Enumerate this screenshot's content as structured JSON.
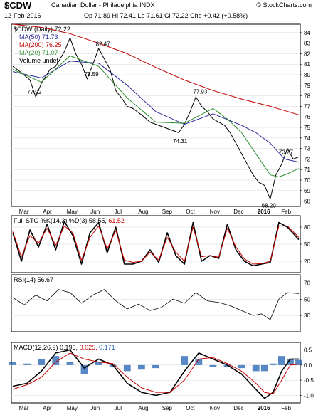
{
  "header": {
    "symbol": "$CDW",
    "name": "Canadian Dollar - Philadelphia",
    "exchange": "INDX",
    "brand": "© StockCharts.com",
    "date": "12-Feb-2016",
    "quote": "Op 71.89  Hi 72.41  Lo 71.61  Cl 72.22  Chg +0.42 (+0.58%)"
  },
  "colors": {
    "price": "#000000",
    "ma50": "#2a2a9a",
    "ma200": "#c00000",
    "ma20": "#2e8b2e",
    "sto_k": "#000000",
    "sto_d": "#cc0000",
    "macd_line": "#000000",
    "signal_line": "#cc0000",
    "histogram": "#1f5fb0",
    "rsi_fill_under": "#8b4a4a"
  },
  "panels": {
    "price": {
      "legend": [
        {
          "text": "$CDW (Daily) 72.22",
          "color": "#000000"
        },
        {
          "text": "MA(50) 71.73",
          "color": "#2a2a9a"
        },
        {
          "text": "MA(200) 76.25",
          "color": "#c00000"
        },
        {
          "text": "MA(20) 71.07",
          "color": "#2e8b2e"
        },
        {
          "text": "Volume undef",
          "color": "#000000"
        }
      ]
    },
    "sto": {
      "label": "Full STO %K(14,3) %D(3) 58.55, 61.52",
      "label_k": "Full STO %K(14,3) %D(3) 58.55,",
      "label_d": "61.52"
    },
    "rsi": {
      "label": "RSI(14) 56.67"
    },
    "macd": {
      "label_a": "MACD(12,26,9) 0.196,",
      "label_b": "0.025,",
      "label_c": "0.171"
    }
  },
  "chart_data": [
    {
      "type": "line",
      "title": "$CDW (Daily) 72.22",
      "ylim": [
        67.5,
        84.8
      ],
      "ticks_y": [
        68,
        69,
        70,
        71,
        72,
        73,
        74,
        75,
        76,
        77,
        78,
        79,
        80,
        81,
        82,
        83,
        84
      ],
      "x_months": [
        "Mar",
        "Apr",
        "May",
        "Jun",
        "Jul",
        "Aug",
        "Sep",
        "Oct",
        "Nov",
        "Dec",
        "2016",
        "Feb"
      ],
      "annotations": [
        {
          "text": "77.92",
          "x": 0.08,
          "y": 77.92
        },
        {
          "text": "82.47",
          "x": 0.32,
          "y": 82.47
        },
        {
          "text": "79.59",
          "x": 0.28,
          "y": 79.59
        },
        {
          "text": "77.93",
          "x": 0.66,
          "y": 77.93
        },
        {
          "text": "74.31",
          "x": 0.59,
          "y": 74.31
        },
        {
          "text": "73.27",
          "x": 0.96,
          "y": 73.27
        },
        {
          "text": "68.20",
          "x": 0.9,
          "y": 68.2
        }
      ],
      "series": [
        {
          "name": "$CDW",
          "x": [
            0,
            0.03,
            0.06,
            0.08,
            0.1,
            0.13,
            0.15,
            0.18,
            0.2,
            0.22,
            0.24,
            0.26,
            0.28,
            0.3,
            0.32,
            0.34,
            0.36,
            0.38,
            0.4,
            0.42,
            0.45,
            0.48,
            0.5,
            0.53,
            0.55,
            0.58,
            0.6,
            0.62,
            0.64,
            0.66,
            0.68,
            0.7,
            0.72,
            0.74,
            0.76,
            0.78,
            0.8,
            0.82,
            0.84,
            0.86,
            0.88,
            0.9,
            0.92,
            0.94,
            0.96,
            0.98,
            1.0
          ],
          "values": [
            80.8,
            80.2,
            79.5,
            77.9,
            79.2,
            80.5,
            80.8,
            82.2,
            83.5,
            82.0,
            81.0,
            79.6,
            81.0,
            82.5,
            81.5,
            80.5,
            78.5,
            77.8,
            77.0,
            76.8,
            76.2,
            75.5,
            75.3,
            75.0,
            74.8,
            74.5,
            75.3,
            76.5,
            77.9,
            77.0,
            76.5,
            75.8,
            75.5,
            75.2,
            74.5,
            73.5,
            72.5,
            71.5,
            70.5,
            69.8,
            69.5,
            68.2,
            70.5,
            71.5,
            73.0,
            72.0,
            72.2
          ]
        },
        {
          "name": "MA(50)",
          "x": [
            0,
            0.1,
            0.2,
            0.3,
            0.4,
            0.5,
            0.6,
            0.7,
            0.8,
            0.85,
            0.9,
            0.95,
            1.0
          ],
          "values": [
            80.3,
            79.7,
            81.3,
            81.1,
            79.0,
            76.5,
            75.3,
            76.3,
            75.2,
            74.5,
            73.5,
            72.0,
            71.7
          ]
        },
        {
          "name": "MA(200)",
          "x": [
            0,
            0.1,
            0.2,
            0.3,
            0.4,
            0.5,
            0.6,
            0.7,
            0.8,
            0.9,
            1.0
          ],
          "values": [
            84.8,
            84.5,
            83.9,
            83.0,
            82.0,
            80.7,
            79.5,
            78.5,
            77.7,
            77.0,
            76.2
          ]
        },
        {
          "name": "MA(20)",
          "x": [
            0,
            0.1,
            0.2,
            0.3,
            0.4,
            0.5,
            0.6,
            0.7,
            0.75,
            0.8,
            0.85,
            0.9,
            0.93,
            0.96,
            1.0
          ],
          "values": [
            80.5,
            79.3,
            81.8,
            80.8,
            77.8,
            75.5,
            75.4,
            76.8,
            75.8,
            74.5,
            72.5,
            70.5,
            70.3,
            70.6,
            71.1
          ]
        }
      ]
    },
    {
      "type": "line",
      "title": "Full STO %K(14,3) %D(3) 58.55, 61.52",
      "ylim": [
        0,
        100
      ],
      "ticks_y": [
        20,
        50,
        80
      ],
      "series": [
        {
          "name": "%K",
          "x": [
            0,
            0.03,
            0.06,
            0.09,
            0.12,
            0.15,
            0.18,
            0.21,
            0.24,
            0.27,
            0.3,
            0.33,
            0.36,
            0.39,
            0.42,
            0.45,
            0.48,
            0.51,
            0.54,
            0.57,
            0.6,
            0.63,
            0.66,
            0.69,
            0.72,
            0.75,
            0.78,
            0.81,
            0.84,
            0.87,
            0.9,
            0.93,
            0.96,
            1.0
          ],
          "values": [
            70,
            20,
            75,
            45,
            85,
            40,
            90,
            65,
            15,
            70,
            88,
            35,
            80,
            15,
            15,
            20,
            40,
            18,
            70,
            30,
            15,
            88,
            20,
            30,
            25,
            85,
            40,
            20,
            12,
            15,
            18,
            88,
            80,
            58
          ]
        },
        {
          "name": "%D",
          "x": [
            0,
            0.03,
            0.06,
            0.09,
            0.12,
            0.15,
            0.18,
            0.21,
            0.24,
            0.27,
            0.3,
            0.33,
            0.36,
            0.39,
            0.42,
            0.45,
            0.48,
            0.51,
            0.54,
            0.57,
            0.6,
            0.63,
            0.66,
            0.69,
            0.72,
            0.75,
            0.78,
            0.81,
            0.84,
            0.87,
            0.9,
            0.93,
            0.96,
            1.0
          ],
          "values": [
            72,
            28,
            65,
            52,
            78,
            48,
            82,
            70,
            22,
            62,
            82,
            42,
            74,
            22,
            18,
            20,
            36,
            22,
            62,
            36,
            20,
            80,
            28,
            30,
            27,
            78,
            45,
            24,
            15,
            16,
            20,
            82,
            82,
            62
          ]
        }
      ]
    },
    {
      "type": "line",
      "title": "RSI(14) 56.67",
      "ylim": [
        10,
        80
      ],
      "ticks_y": [
        30,
        50,
        70
      ],
      "series": [
        {
          "name": "RSI(14)",
          "x": [
            0,
            0.04,
            0.08,
            0.12,
            0.16,
            0.2,
            0.24,
            0.28,
            0.32,
            0.36,
            0.4,
            0.44,
            0.48,
            0.52,
            0.56,
            0.6,
            0.64,
            0.68,
            0.72,
            0.76,
            0.8,
            0.84,
            0.87,
            0.9,
            0.93,
            0.96,
            1.0
          ],
          "values": [
            52,
            43,
            55,
            48,
            62,
            58,
            45,
            55,
            62,
            48,
            38,
            44,
            36,
            40,
            50,
            45,
            58,
            48,
            46,
            42,
            36,
            30,
            32,
            25,
            50,
            58,
            57
          ]
        }
      ]
    },
    {
      "type": "line",
      "title": "MACD(12,26,9) 0.196, 0.025, 0.171",
      "ylim": [
        -1.25,
        0.75
      ],
      "ticks_y": [
        -1.0,
        -0.5,
        0.0,
        0.5
      ],
      "series": [
        {
          "name": "MACD",
          "x": [
            0,
            0.05,
            0.1,
            0.15,
            0.2,
            0.25,
            0.3,
            0.35,
            0.4,
            0.45,
            0.5,
            0.55,
            0.6,
            0.65,
            0.7,
            0.75,
            0.8,
            0.85,
            0.88,
            0.91,
            0.94,
            0.97,
            1.0
          ],
          "values": [
            -0.7,
            -0.6,
            -0.2,
            0.4,
            0.5,
            -0.1,
            0.2,
            0.0,
            -0.6,
            -0.9,
            -1.0,
            -0.9,
            -0.2,
            0.4,
            0.2,
            0.0,
            -0.3,
            -0.8,
            -1.1,
            -0.9,
            -0.2,
            0.2,
            0.2
          ]
        },
        {
          "name": "Signal",
          "x": [
            0,
            0.05,
            0.1,
            0.15,
            0.2,
            0.25,
            0.3,
            0.35,
            0.4,
            0.45,
            0.5,
            0.55,
            0.6,
            0.65,
            0.7,
            0.75,
            0.8,
            0.85,
            0.88,
            0.91,
            0.94,
            0.97,
            1.0
          ],
          "values": [
            -0.8,
            -0.65,
            -0.4,
            0.1,
            0.4,
            0.2,
            0.1,
            0.05,
            -0.4,
            -0.75,
            -0.9,
            -0.9,
            -0.5,
            0.2,
            0.25,
            0.05,
            -0.2,
            -0.6,
            -0.9,
            -0.95,
            -0.5,
            0.0,
            0.03
          ]
        },
        {
          "name": "Histogram",
          "x": [
            0,
            0.05,
            0.1,
            0.15,
            0.2,
            0.25,
            0.3,
            0.35,
            0.4,
            0.45,
            0.5,
            0.55,
            0.6,
            0.65,
            0.7,
            0.75,
            0.8,
            0.85,
            0.88,
            0.91,
            0.94,
            0.97,
            1.0
          ],
          "values": [
            0.1,
            0.05,
            0.2,
            0.3,
            0.1,
            -0.3,
            0.1,
            -0.05,
            -0.2,
            -0.15,
            -0.1,
            0.0,
            0.3,
            0.2,
            -0.05,
            -0.05,
            -0.1,
            -0.2,
            -0.2,
            0.05,
            0.3,
            0.2,
            0.17
          ]
        }
      ]
    }
  ]
}
